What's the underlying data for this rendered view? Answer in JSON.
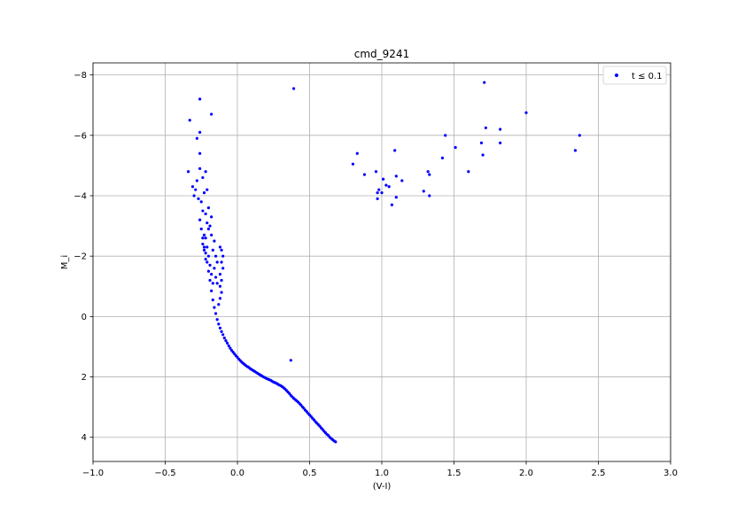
{
  "chart_data": {
    "type": "scatter",
    "title": "cmd_9241",
    "xlabel": "(V-I)",
    "ylabel": "M_i",
    "xlim": [
      -1.0,
      3.0
    ],
    "ylim": [
      4.8,
      -8.4
    ],
    "y_inverted": true,
    "grid": true,
    "legend_position": "top-right",
    "x_ticks": [
      "−1.0",
      "−0.5",
      "0.0",
      "0.5",
      "1.0",
      "1.5",
      "2.0",
      "2.5",
      "3.0"
    ],
    "y_ticks": [
      "−8",
      "−6",
      "−4",
      "−2",
      "0",
      "2",
      "4"
    ],
    "series": [
      {
        "name": "t ≤ 0.1",
        "color": "#0000ff",
        "points": [
          [
            0.68,
            4.15
          ],
          [
            0.67,
            4.12
          ],
          [
            0.66,
            4.08
          ],
          [
            0.65,
            4.04
          ],
          [
            0.64,
            4.0
          ],
          [
            0.63,
            3.94
          ],
          [
            0.62,
            3.9
          ],
          [
            0.61,
            3.85
          ],
          [
            0.6,
            3.8
          ],
          [
            0.59,
            3.74
          ],
          [
            0.58,
            3.69
          ],
          [
            0.57,
            3.63
          ],
          [
            0.56,
            3.58
          ],
          [
            0.55,
            3.53
          ],
          [
            0.54,
            3.48
          ],
          [
            0.53,
            3.42
          ],
          [
            0.52,
            3.37
          ],
          [
            0.51,
            3.31
          ],
          [
            0.5,
            3.26
          ],
          [
            0.49,
            3.21
          ],
          [
            0.48,
            3.15
          ],
          [
            0.47,
            3.1
          ],
          [
            0.46,
            3.04
          ],
          [
            0.45,
            2.99
          ],
          [
            0.44,
            2.93
          ],
          [
            0.43,
            2.88
          ],
          [
            0.42,
            2.83
          ],
          [
            0.41,
            2.79
          ],
          [
            0.4,
            2.75
          ],
          [
            0.39,
            2.71
          ],
          [
            0.38,
            2.66
          ],
          [
            0.37,
            2.61
          ],
          [
            0.36,
            2.55
          ],
          [
            0.35,
            2.5
          ],
          [
            0.34,
            2.45
          ],
          [
            0.33,
            2.4
          ],
          [
            0.32,
            2.36
          ],
          [
            0.31,
            2.32
          ],
          [
            0.3,
            2.29
          ],
          [
            0.29,
            2.27
          ],
          [
            0.28,
            2.24
          ],
          [
            0.27,
            2.21
          ],
          [
            0.26,
            2.19
          ],
          [
            0.25,
            2.17
          ],
          [
            0.24,
            2.14
          ],
          [
            0.23,
            2.11
          ],
          [
            0.22,
            2.09
          ],
          [
            0.21,
            2.07
          ],
          [
            0.2,
            2.05
          ],
          [
            0.19,
            2.02
          ],
          [
            0.18,
            2.0
          ],
          [
            0.17,
            1.97
          ],
          [
            0.16,
            1.94
          ],
          [
            0.15,
            1.91
          ],
          [
            0.14,
            1.88
          ],
          [
            0.13,
            1.85
          ],
          [
            0.12,
            1.82
          ],
          [
            0.11,
            1.79
          ],
          [
            0.1,
            1.76
          ],
          [
            0.09,
            1.73
          ],
          [
            0.08,
            1.69
          ],
          [
            0.07,
            1.66
          ],
          [
            0.06,
            1.63
          ],
          [
            0.05,
            1.59
          ],
          [
            0.04,
            1.55
          ],
          [
            0.03,
            1.51
          ],
          [
            0.02,
            1.46
          ],
          [
            0.01,
            1.41
          ],
          [
            0.0,
            1.35
          ],
          [
            -0.01,
            1.3
          ],
          [
            -0.02,
            1.24
          ],
          [
            -0.03,
            1.18
          ],
          [
            -0.04,
            1.12
          ],
          [
            -0.05,
            1.05
          ],
          [
            -0.06,
            0.97
          ],
          [
            -0.07,
            0.88
          ],
          [
            -0.08,
            0.8
          ],
          [
            -0.09,
            0.71
          ],
          [
            -0.1,
            0.6
          ],
          [
            -0.11,
            0.5
          ],
          [
            -0.12,
            0.38
          ],
          [
            -0.13,
            0.25
          ],
          [
            -0.14,
            0.1
          ],
          [
            -0.15,
            -0.1
          ],
          [
            -0.16,
            -0.3
          ],
          [
            -0.17,
            -0.55
          ],
          [
            -0.18,
            -0.85
          ],
          [
            -0.19,
            -1.2
          ],
          [
            -0.2,
            -1.5
          ],
          [
            -0.21,
            -1.8
          ],
          [
            -0.22,
            -2.1
          ],
          [
            -0.23,
            -2.3
          ],
          [
            -0.24,
            -2.6
          ],
          [
            -0.25,
            -2.9
          ],
          [
            -0.26,
            -3.2
          ],
          [
            -0.13,
            -0.4
          ],
          [
            -0.12,
            -0.6
          ],
          [
            -0.11,
            -0.8
          ],
          [
            -0.12,
            -1.0
          ],
          [
            -0.11,
            -1.2
          ],
          [
            -0.12,
            -1.4
          ],
          [
            -0.1,
            -1.6
          ],
          [
            -0.11,
            -1.8
          ],
          [
            -0.1,
            -2.0
          ],
          [
            -0.11,
            -2.2
          ],
          [
            -0.12,
            -2.3
          ],
          [
            -0.14,
            -1.1
          ],
          [
            -0.15,
            -1.3
          ],
          [
            -0.16,
            -1.6
          ],
          [
            -0.14,
            -1.8
          ],
          [
            -0.15,
            -2.0
          ],
          [
            -0.17,
            -1.1
          ],
          [
            -0.18,
            -1.4
          ],
          [
            -0.19,
            -1.7
          ],
          [
            -0.2,
            -2.0
          ],
          [
            -0.21,
            -2.3
          ],
          [
            -0.22,
            -2.6
          ],
          [
            -0.23,
            -2.7
          ],
          [
            -0.24,
            -2.4
          ],
          [
            -0.22,
            -1.9
          ],
          [
            -0.23,
            -2.2
          ],
          [
            -0.17,
            -2.2
          ],
          [
            -0.16,
            -2.5
          ],
          [
            -0.18,
            -2.7
          ],
          [
            -0.2,
            -2.9
          ],
          [
            -0.21,
            -3.1
          ],
          [
            -0.22,
            -3.4
          ],
          [
            -0.19,
            -3.0
          ],
          [
            -0.18,
            -3.3
          ],
          [
            -0.2,
            -3.6
          ],
          [
            -0.24,
            -3.5
          ],
          [
            -0.25,
            -3.8
          ],
          [
            -0.27,
            -3.9
          ],
          [
            -0.23,
            -4.1
          ],
          [
            -0.21,
            -4.2
          ],
          [
            -0.3,
            -4.0
          ],
          [
            -0.29,
            -4.2
          ],
          [
            -0.28,
            -4.5
          ],
          [
            -0.24,
            -4.6
          ],
          [
            -0.22,
            -4.8
          ],
          [
            -0.26,
            -4.9
          ],
          [
            -0.31,
            -4.3
          ],
          [
            -0.34,
            -4.8
          ],
          [
            -0.26,
            -5.4
          ],
          [
            -0.28,
            -5.9
          ],
          [
            -0.26,
            -6.1
          ],
          [
            -0.33,
            -6.5
          ],
          [
            -0.18,
            -6.7
          ],
          [
            -0.26,
            -7.2
          ],
          [
            0.39,
            -7.55
          ],
          [
            0.37,
            1.45
          ],
          [
            0.8,
            -5.05
          ],
          [
            0.83,
            -5.4
          ],
          [
            0.88,
            -4.7
          ],
          [
            0.96,
            -4.8
          ],
          [
            0.97,
            -4.1
          ],
          [
            0.97,
            -3.9
          ],
          [
            0.98,
            -4.2
          ],
          [
            1.0,
            -4.1
          ],
          [
            1.01,
            -4.55
          ],
          [
            1.03,
            -4.35
          ],
          [
            1.05,
            -4.3
          ],
          [
            1.07,
            -3.7
          ],
          [
            1.09,
            -5.5
          ],
          [
            1.1,
            -4.65
          ],
          [
            1.1,
            -3.95
          ],
          [
            1.14,
            -4.5
          ],
          [
            1.29,
            -4.15
          ],
          [
            1.32,
            -4.8
          ],
          [
            1.33,
            -4.0
          ],
          [
            1.33,
            -4.7
          ],
          [
            1.42,
            -5.25
          ],
          [
            1.44,
            -6.0
          ],
          [
            1.51,
            -5.6
          ],
          [
            1.6,
            -4.8
          ],
          [
            1.69,
            -5.75
          ],
          [
            1.7,
            -5.35
          ],
          [
            1.71,
            -7.75
          ],
          [
            1.72,
            -6.25
          ],
          [
            1.82,
            -6.2
          ],
          [
            1.82,
            -5.75
          ],
          [
            2.0,
            -6.75
          ],
          [
            2.34,
            -5.5
          ],
          [
            2.37,
            -6.0
          ]
        ]
      }
    ]
  }
}
